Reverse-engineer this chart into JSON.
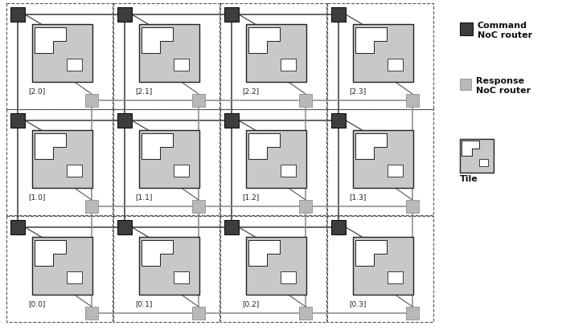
{
  "grid_rows": 3,
  "grid_cols": 4,
  "labels": [
    [
      "[2.0]",
      "[2.1]",
      "[2.2]",
      "[2.3]"
    ],
    [
      "[1.0]",
      "[1.1]",
      "[1.2]",
      "[1.3]"
    ],
    [
      "[0.0]",
      "[0.1]",
      "[0.2]",
      "[0.3]"
    ]
  ],
  "cmd_router_color": "#3d3d3d",
  "resp_router_color": "#b8b8b8",
  "tile_fill_color": "#c8c8c8",
  "tile_inner_fill": "#e8e8e8",
  "tile_border_color": "#222222",
  "bg_color": "#ffffff",
  "line_color": "#666666",
  "legend_cmd_label1": "Command",
  "legend_cmd_label2": "NoC router",
  "legend_resp_label1": "Response",
  "legend_resp_label2": "NoC router",
  "legend_tile_label": "Tile",
  "figsize": [
    6.99,
    4.16
  ],
  "dpi": 100
}
